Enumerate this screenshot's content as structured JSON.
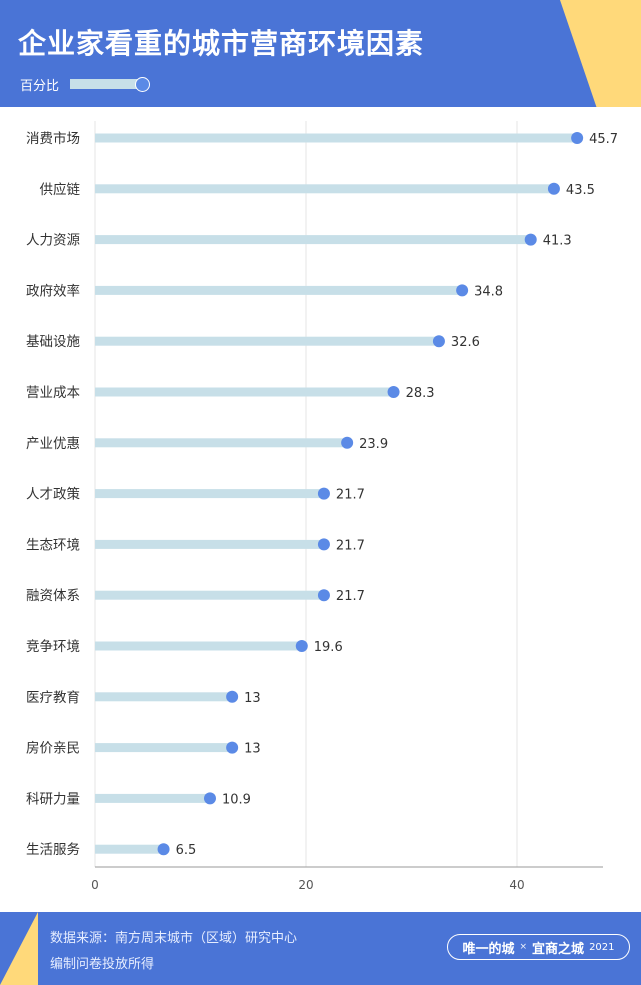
{
  "chart_data": {
    "type": "bar",
    "orientation": "horizontal",
    "style": "lollipop",
    "title": "企业家看重的城市营商环境因素",
    "unit": "百分比",
    "categories": [
      "消费市场",
      "供应链",
      "人力资源",
      "政府效率",
      "基础设施",
      "营业成本",
      "产业优惠",
      "人才政策",
      "生态环境",
      "融资体系",
      "竞争环境",
      "医疗教育",
      "房价亲民",
      "科研力量",
      "生活服务"
    ],
    "values": [
      45.7,
      43.5,
      41.3,
      34.8,
      32.6,
      28.3,
      23.9,
      21.7,
      21.7,
      21.7,
      19.6,
      13,
      13,
      10.9,
      6.5
    ],
    "value_labels": [
      "45.7",
      "43.5",
      "41.3",
      "34.8",
      "32.6",
      "28.3",
      "23.9",
      "21.7",
      "21.7",
      "21.7",
      "19.6",
      "13",
      "13",
      "10.9",
      "6.5"
    ],
    "xticks": [
      0,
      20,
      40
    ],
    "xlim": [
      0,
      48
    ],
    "grid": true,
    "legend": "none"
  },
  "footer": {
    "source_line1": "数据来源：南方周末城市（区域）研究中心",
    "source_line2": "编制问卷投放所得",
    "badge_left": "唯一的城",
    "badge_sep": "×",
    "badge_right": "宜商之城",
    "badge_year": "2021"
  },
  "colors": {
    "header_bg": "#4a74d6",
    "accent_yellow": "#ffd97a",
    "bar": "#c7dfe8",
    "dot": "#5b8ae6",
    "text": "#333333",
    "grid": "#e6e6e6"
  }
}
